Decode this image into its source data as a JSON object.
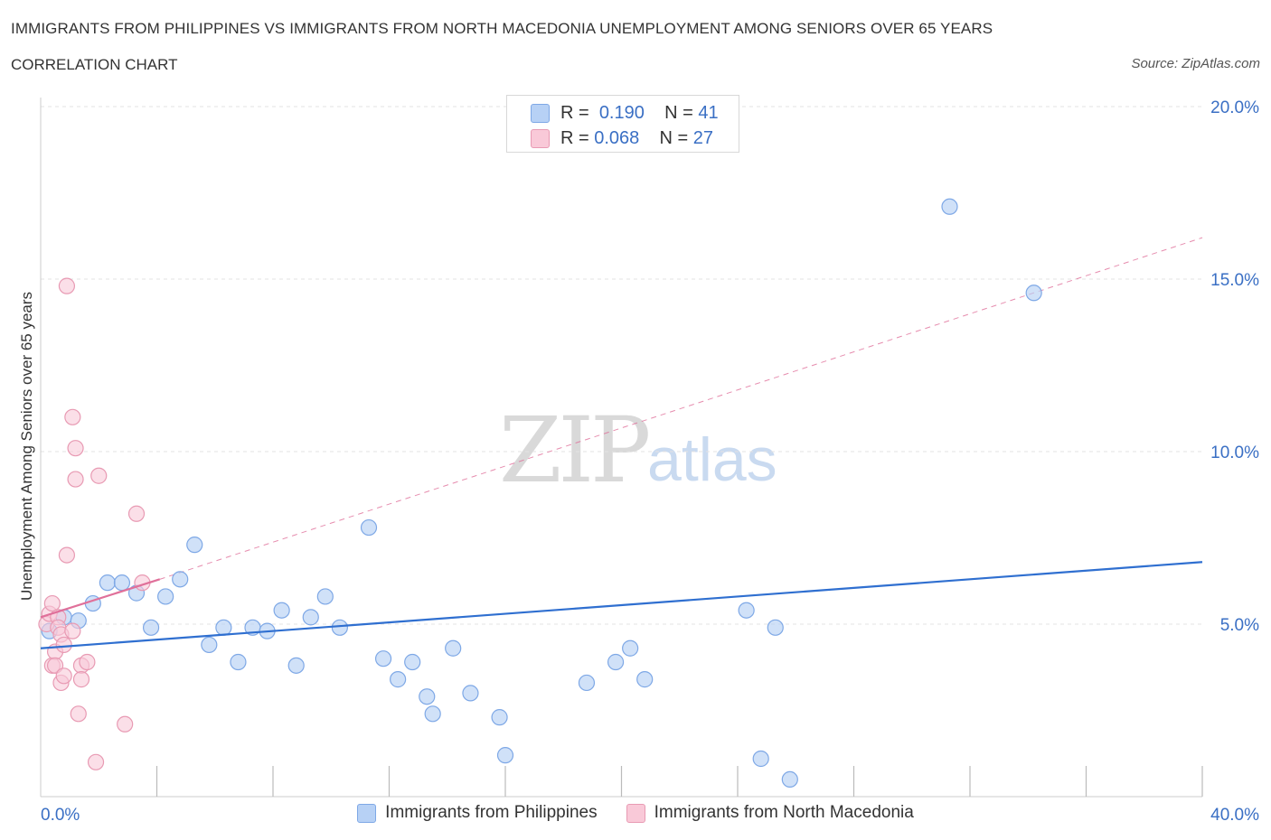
{
  "title": "IMMIGRANTS FROM PHILIPPINES VS IMMIGRANTS FROM NORTH MACEDONIA UNEMPLOYMENT AMONG SENIORS OVER 65 YEARS",
  "subtitle": "CORRELATION CHART",
  "source": "Source: ZipAtlas.com",
  "watermark": {
    "zip": "ZIP",
    "atlas": "atlas"
  },
  "stats": {
    "r_label": "R =",
    "n_label": "N =",
    "philippines": {
      "r": "0.190",
      "n": "41"
    },
    "north_macedonia": {
      "r": "0.068",
      "n": "27"
    }
  },
  "colors": {
    "blue_fill": "#b7d1f5",
    "blue_stroke": "#7ea8e6",
    "blue_line": "#2f6fd0",
    "pink_fill": "#f9c9d8",
    "pink_stroke": "#e89ab3",
    "pink_line": "#e0709a",
    "axis_text": "#3a6fc4",
    "grid": "#e3e3e3"
  },
  "chart_data": {
    "type": "scatter",
    "title": "IMMIGRANTS FROM PHILIPPINES VS IMMIGRANTS FROM NORTH MACEDONIA UNEMPLOYMENT AMONG SENIORS OVER 65 YEARS",
    "xlabel": "",
    "ylabel": "Unemployment Among Seniors over 65 years",
    "xlim": [
      0,
      40
    ],
    "ylim": [
      0,
      20
    ],
    "x_tick_labels": [
      "0.0%",
      "40.0%"
    ],
    "y_ticks": [
      5,
      10,
      15,
      20
    ],
    "y_tick_labels": [
      "5.0%",
      "10.0%",
      "15.0%",
      "20.0%"
    ],
    "grid": true,
    "legend_position": "bottom",
    "series": [
      {
        "name": "Immigrants from Philippines",
        "color": "#b7d1f5",
        "points": [
          [
            0.3,
            4.8
          ],
          [
            0.8,
            5.2
          ],
          [
            1.3,
            5.1
          ],
          [
            1.8,
            5.6
          ],
          [
            2.3,
            6.2
          ],
          [
            2.8,
            6.2
          ],
          [
            3.3,
            5.9
          ],
          [
            3.8,
            4.9
          ],
          [
            4.3,
            5.8
          ],
          [
            4.8,
            6.3
          ],
          [
            5.3,
            7.3
          ],
          [
            5.8,
            4.4
          ],
          [
            6.3,
            4.9
          ],
          [
            6.8,
            3.9
          ],
          [
            7.3,
            4.9
          ],
          [
            7.8,
            4.8
          ],
          [
            8.3,
            5.4
          ],
          [
            8.8,
            3.8
          ],
          [
            9.3,
            5.2
          ],
          [
            9.8,
            5.8
          ],
          [
            10.3,
            4.9
          ],
          [
            11.3,
            7.8
          ],
          [
            11.8,
            4.0
          ],
          [
            12.3,
            3.4
          ],
          [
            12.8,
            3.9
          ],
          [
            13.3,
            2.9
          ],
          [
            13.5,
            2.4
          ],
          [
            14.2,
            4.3
          ],
          [
            14.8,
            3.0
          ],
          [
            15.8,
            2.3
          ],
          [
            16.0,
            1.2
          ],
          [
            18.8,
            3.3
          ],
          [
            19.8,
            3.9
          ],
          [
            20.3,
            4.3
          ],
          [
            20.8,
            3.4
          ],
          [
            24.3,
            5.4
          ],
          [
            24.8,
            1.1
          ],
          [
            25.3,
            4.9
          ],
          [
            25.8,
            0.5
          ],
          [
            31.3,
            17.1
          ],
          [
            34.2,
            14.6
          ]
        ],
        "trend": {
          "x": [
            0,
            40
          ],
          "y": [
            4.3,
            6.8
          ]
        }
      },
      {
        "name": "Immigrants from North Macedonia",
        "color": "#f9c9d8",
        "points": [
          [
            0.2,
            5.0
          ],
          [
            0.3,
            5.3
          ],
          [
            0.4,
            3.8
          ],
          [
            0.4,
            5.6
          ],
          [
            0.5,
            4.2
          ],
          [
            0.5,
            3.8
          ],
          [
            0.6,
            5.2
          ],
          [
            0.6,
            4.9
          ],
          [
            0.7,
            4.7
          ],
          [
            0.7,
            3.3
          ],
          [
            0.8,
            4.4
          ],
          [
            0.8,
            3.5
          ],
          [
            0.9,
            7.0
          ],
          [
            0.9,
            14.8
          ],
          [
            1.1,
            4.8
          ],
          [
            1.1,
            11.0
          ],
          [
            1.2,
            9.2
          ],
          [
            1.2,
            10.1
          ],
          [
            1.3,
            2.4
          ],
          [
            1.4,
            3.8
          ],
          [
            1.4,
            3.4
          ],
          [
            1.6,
            3.9
          ],
          [
            1.9,
            1.0
          ],
          [
            2.0,
            9.3
          ],
          [
            2.9,
            2.1
          ],
          [
            3.3,
            8.2
          ],
          [
            3.5,
            6.2
          ]
        ],
        "trend_solid": {
          "x": [
            0,
            4.1
          ],
          "y": [
            5.2,
            6.3
          ]
        },
        "trend_dashed": {
          "x": [
            4.1,
            40
          ],
          "y": [
            6.3,
            16.2
          ]
        }
      }
    ]
  },
  "legend": {
    "philippines": "Immigrants from Philippines",
    "north_macedonia": "Immigrants from North Macedonia"
  }
}
